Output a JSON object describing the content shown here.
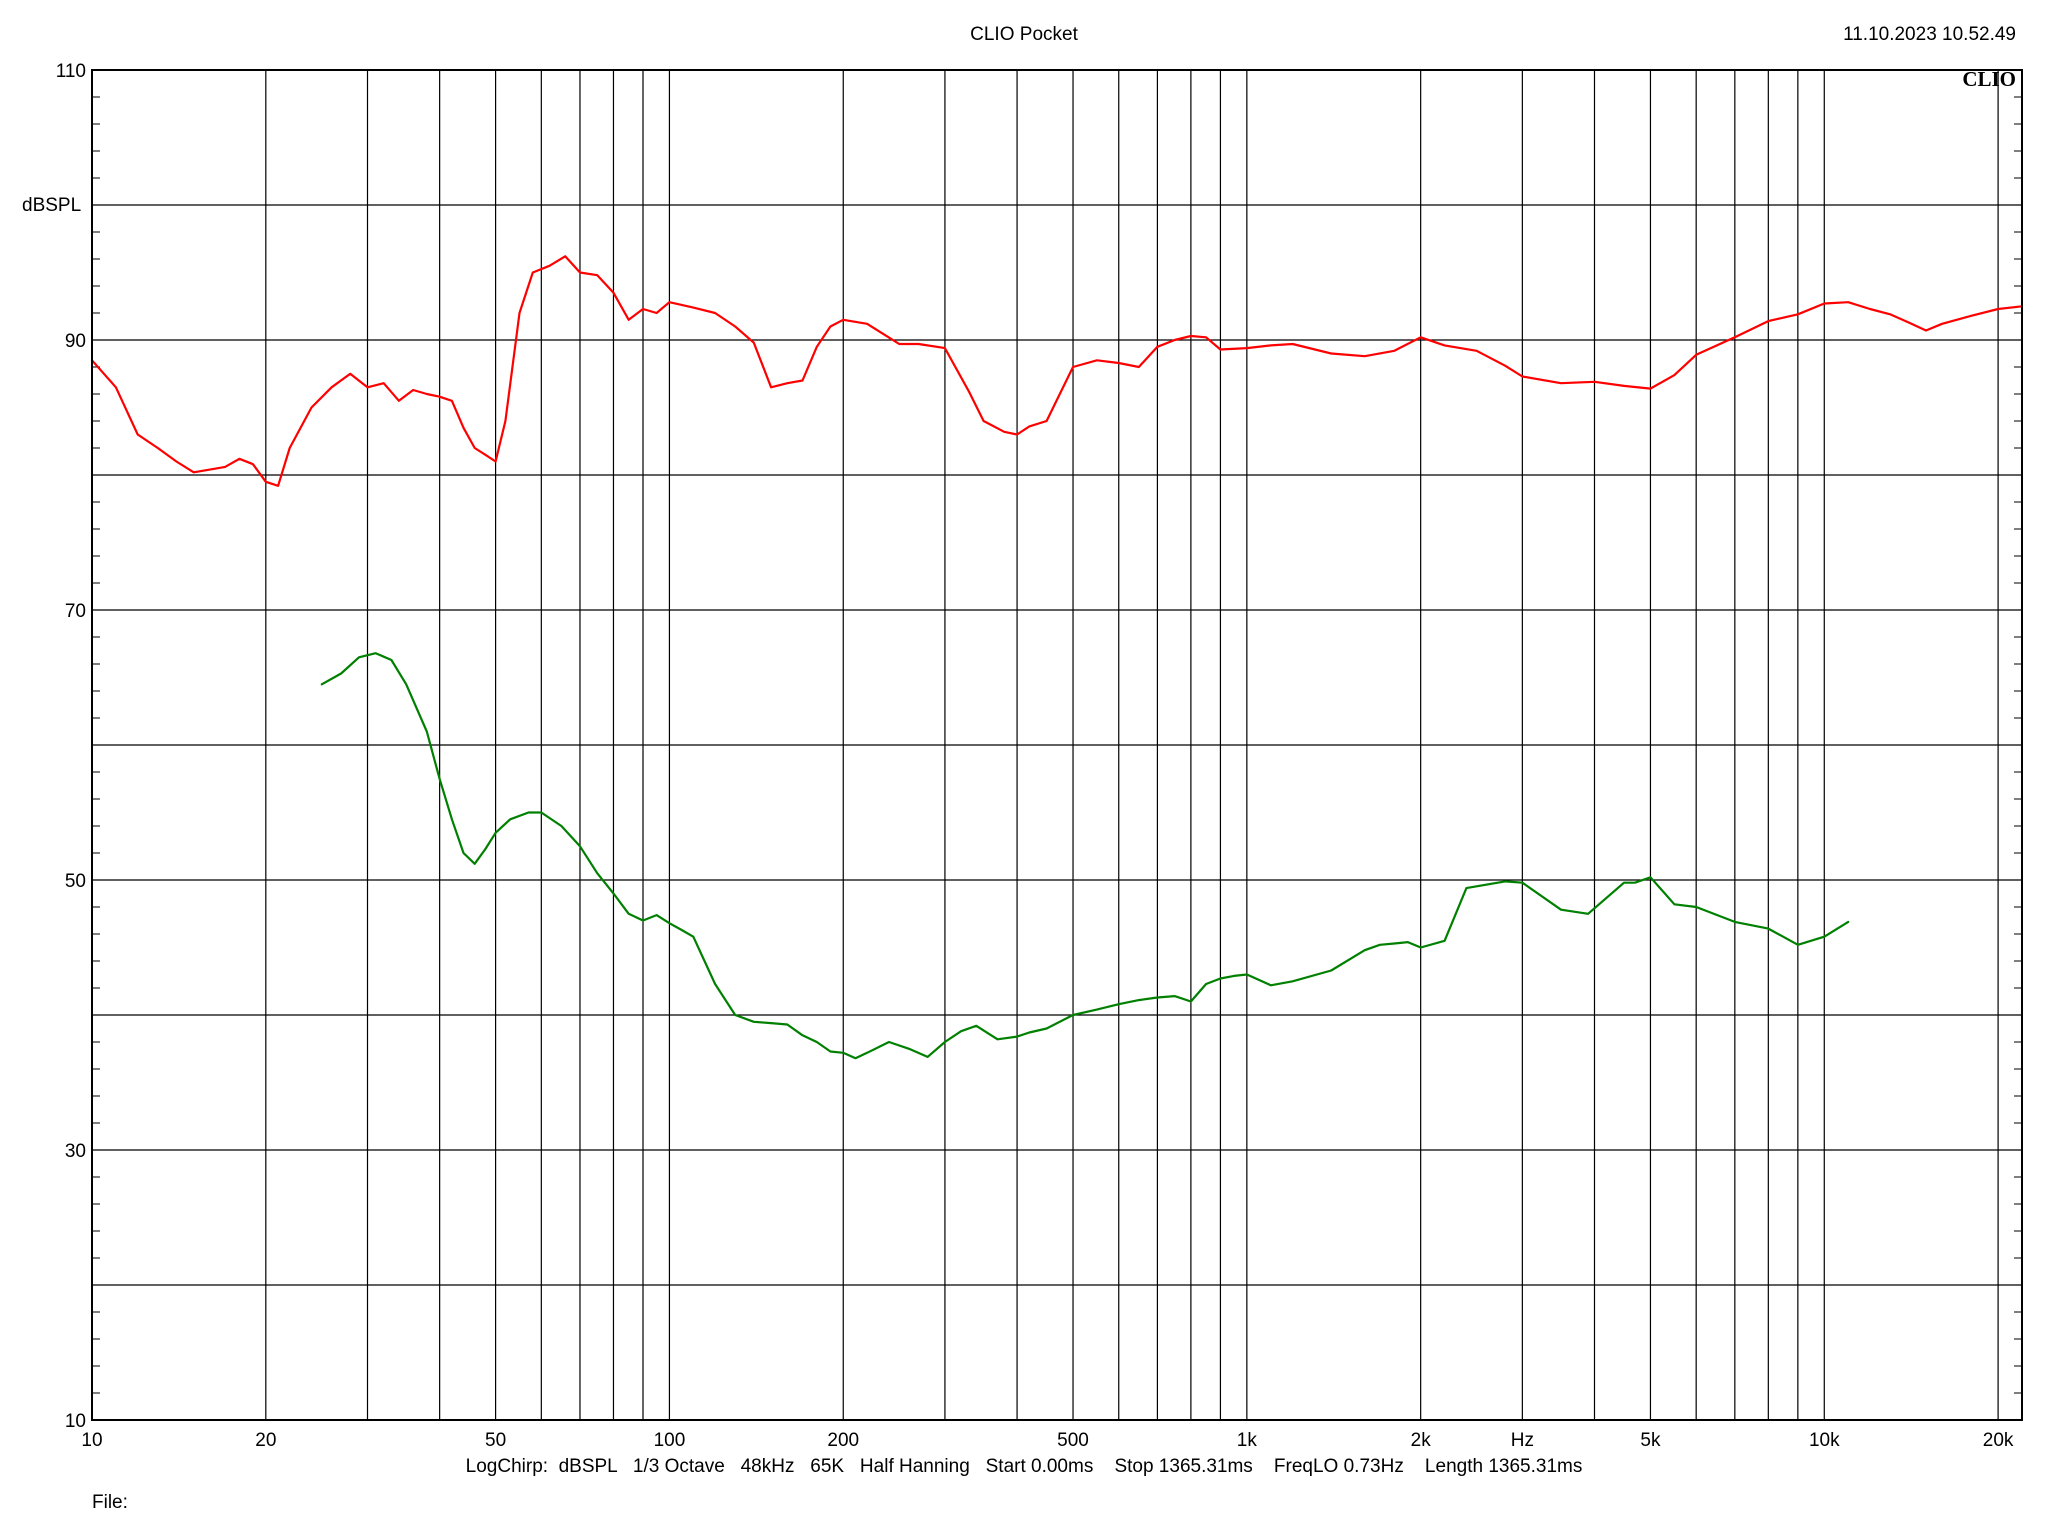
{
  "header": {
    "title": "CLIO Pocket",
    "timestamp": "11.10.2023 10.52.49",
    "logo_text": "CLIO"
  },
  "footer": {
    "settings": "LogChirp:  dBSPL   1/3 Octave   48kHz   65K   Half Hanning   Start 0.00ms    Stop 1365.31ms    FreqLO 0.73Hz    Length 1365.31ms",
    "file_label": "File:"
  },
  "chart_data": {
    "type": "line",
    "title": "",
    "xlabel": "Hz",
    "ylabel": "dBSPL",
    "xscale": "log",
    "xlim": [
      10,
      22000
    ],
    "ylim": [
      10,
      110
    ],
    "grid": true,
    "x_ticks": [
      {
        "value": 10,
        "label": "10"
      },
      {
        "value": 20,
        "label": "20"
      },
      {
        "value": 50,
        "label": "50"
      },
      {
        "value": 100,
        "label": "100"
      },
      {
        "value": 200,
        "label": "200"
      },
      {
        "value": 500,
        "label": "500"
      },
      {
        "value": 1000,
        "label": "1k"
      },
      {
        "value": 2000,
        "label": "2k"
      },
      {
        "value": 5000,
        "label": "5k"
      },
      {
        "value": 10000,
        "label": "10k"
      },
      {
        "value": 20000,
        "label": "20k"
      }
    ],
    "x_unit_label": {
      "value": 3000,
      "label": "Hz"
    },
    "y_ticks": [
      {
        "value": 10,
        "label": "10"
      },
      {
        "value": 30,
        "label": "30"
      },
      {
        "value": 50,
        "label": "50"
      },
      {
        "value": 70,
        "label": "70"
      },
      {
        "value": 90,
        "label": "90"
      },
      {
        "value": 110,
        "label": "110"
      }
    ],
    "series": [
      {
        "color": "#ff0000",
        "x": [
          10,
          11,
          12,
          13,
          14,
          15,
          16,
          17,
          18,
          19,
          20,
          21,
          22,
          24,
          26,
          28,
          30,
          32,
          34,
          36,
          38,
          40,
          42,
          44,
          46,
          48,
          50,
          52,
          55,
          58,
          62,
          66,
          70,
          75,
          80,
          85,
          90,
          95,
          100,
          105,
          110,
          120,
          130,
          140,
          150,
          160,
          170,
          180,
          190,
          200,
          220,
          250,
          270,
          300,
          330,
          350,
          380,
          400,
          420,
          450,
          500,
          550,
          600,
          650,
          700,
          750,
          800,
          850,
          900,
          1000,
          1100,
          1200,
          1400,
          1600,
          1800,
          2000,
          2200,
          2500,
          2800,
          3000,
          3500,
          4000,
          4500,
          5000,
          5500,
          6000,
          7000,
          8000,
          9000,
          10000,
          11000,
          12000,
          13000,
          14000,
          15000,
          16000,
          18000,
          20000,
          22000
        ],
        "y": [
          88.5,
          86.5,
          83,
          82,
          81,
          80.2,
          80.4,
          80.6,
          81.2,
          80.8,
          79.5,
          79.2,
          82,
          85,
          86.5,
          87.5,
          86.5,
          86.8,
          85.5,
          86.3,
          86,
          85.8,
          85.5,
          83.5,
          82,
          81.5,
          81,
          84,
          92,
          95,
          95.5,
          96.2,
          95,
          94.8,
          93.5,
          91.5,
          92.3,
          92.0,
          92.8,
          92.6,
          92.4,
          92.0,
          91.0,
          89.8,
          86.5,
          86.8,
          87,
          89.5,
          91,
          91.5,
          91.2,
          89.7,
          89.7,
          89.4,
          86.2,
          84,
          83.2,
          83,
          83.6,
          84,
          88,
          88.5,
          88.3,
          88,
          89.5,
          90,
          90.3,
          90.2,
          89.3,
          89.4,
          89.6,
          89.7,
          89,
          88.8,
          89.2,
          90.2,
          89.6,
          89.2,
          88.1,
          87.3,
          86.8,
          86.9,
          86.6,
          86.4,
          87.4,
          88.9,
          90.2,
          91.4,
          91.9,
          92.7,
          92.8,
          92.3,
          91.9,
          91.3,
          90.7,
          91.2,
          91.8,
          92.3,
          92.5
        ]
      },
      {
        "color": "#008000",
        "x": [
          25,
          27,
          29,
          31,
          33,
          35,
          38,
          40,
          42,
          44,
          46,
          48,
          50,
          53,
          57,
          60,
          65,
          70,
          75,
          80,
          85,
          90,
          95,
          100,
          105,
          110,
          115,
          120,
          130,
          140,
          150,
          160,
          170,
          180,
          190,
          200,
          210,
          220,
          240,
          260,
          280,
          300,
          320,
          340,
          370,
          400,
          420,
          450,
          500,
          550,
          600,
          650,
          700,
          750,
          800,
          850,
          900,
          950,
          1000,
          1100,
          1200,
          1400,
          1600,
          1700,
          1800,
          1900,
          2000,
          2200,
          2400,
          2800,
          3000,
          3500,
          3900,
          4500,
          4700,
          5000,
          5500,
          6000,
          7000,
          8000,
          9000,
          10000,
          11000
        ],
        "y": [
          64.5,
          65.3,
          66.5,
          66.8,
          66.3,
          64.5,
          61,
          57.5,
          54.5,
          52,
          51.2,
          52.3,
          53.5,
          54.5,
          55,
          55,
          54,
          52.5,
          50.5,
          49,
          47.5,
          47,
          47.4,
          46.8,
          46.3,
          45.8,
          44,
          42.3,
          40,
          39.5,
          39.4,
          39.3,
          38.5,
          38,
          37.3,
          37.2,
          36.8,
          37.2,
          38,
          37.5,
          36.9,
          38,
          38.8,
          39.2,
          38.2,
          38.4,
          38.7,
          39,
          40,
          40.4,
          40.8,
          41.1,
          41.3,
          41.4,
          41.0,
          42.3,
          42.7,
          42.9,
          43.0,
          42.2,
          42.5,
          43.3,
          44.8,
          45.2,
          45.3,
          45.4,
          45.0,
          45.5,
          49.4,
          49.9,
          49.8,
          47.8,
          47.5,
          49.8,
          49.8,
          50.2,
          48.2,
          48.0,
          46.9,
          46.4,
          45.2,
          45.8,
          46.9
        ]
      }
    ]
  }
}
